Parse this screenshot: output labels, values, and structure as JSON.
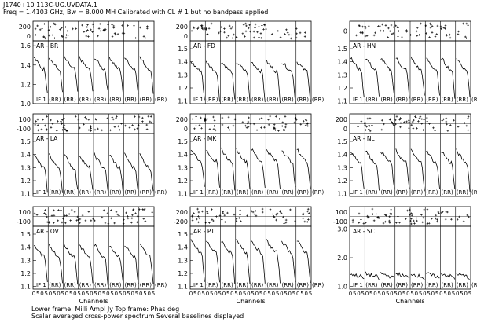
{
  "header": {
    "line1": "J1740+10   113C-UG.UVDATA.1",
    "line2": "Freq = 1.4103 GHz, Bw = 8.000 MH   Calibrated with CL # 1 but no bandpass applied"
  },
  "footer": {
    "line1": "Lower frame: Milli Ampl Jy   Top frame: Phas deg",
    "line2": "Scalar averaged cross-power spectrum     Several baselines displayed"
  },
  "colors": {
    "foreground": "#000000",
    "background": "#ffffff"
  },
  "chart_data": {
    "type": "line",
    "xlabel": "Channels",
    "xticks": [
      "0",
      "5",
      "0",
      "5",
      "0",
      "5",
      "0",
      "5",
      "0",
      "5",
      "0",
      "5",
      "0",
      "5",
      "0",
      "5",
      "0",
      "5",
      "0",
      "5",
      "0",
      "5",
      "0",
      "5",
      "0",
      "5",
      "0",
      "5",
      "0",
      "5"
    ],
    "if_row": [
      "IF 1",
      "(RR)",
      "(RR)",
      "(RR)",
      "(RR)",
      "(RR)",
      "(RR)",
      "(RR)"
    ],
    "panels": [
      {
        "baseline": "AR - BR",
        "phase_ticks": [
          "200",
          "0"
        ],
        "amp_ticks": [
          "1.6",
          "1.4",
          "1.2",
          "1.0"
        ],
        "amp_ylim": [
          1.0,
          1.65
        ],
        "amp_start": 1.48,
        "amp_end": 1.12,
        "mean_amp": 1.36,
        "xlabel": ""
      },
      {
        "baseline": "AR - FD",
        "phase_ticks": [
          "200",
          "0"
        ],
        "amp_ticks": [
          "1.5",
          "1.4",
          "1.3",
          "1.2",
          "1.1"
        ],
        "amp_ylim": [
          1.08,
          1.56
        ],
        "amp_start": 1.4,
        "amp_end": 1.1,
        "mean_amp": 1.33,
        "xlabel": ""
      },
      {
        "baseline": "AR - HN",
        "phase_ticks": [
          "0"
        ],
        "amp_ticks": [
          "1.5",
          "1.4",
          "1.3",
          "1.2",
          "1.1"
        ],
        "amp_ylim": [
          1.08,
          1.56
        ],
        "amp_start": 1.43,
        "amp_end": 1.13,
        "mean_amp": 1.34,
        "xlabel": ""
      },
      {
        "baseline": "AR - LA",
        "phase_ticks": [
          "100",
          "-100"
        ],
        "amp_ticks": [
          "1.5",
          "1.4",
          "1.3",
          "1.2",
          "1.1"
        ],
        "amp_ylim": [
          1.08,
          1.56
        ],
        "amp_start": 1.4,
        "amp_end": 1.12,
        "mean_amp": 1.3,
        "xlabel": ""
      },
      {
        "baseline": "AR - MK",
        "phase_ticks": [
          "200",
          "0"
        ],
        "amp_ticks": [
          "1.5",
          "1.4",
          "1.3",
          "1.2",
          "1.1"
        ],
        "amp_ylim": [
          1.08,
          1.56
        ],
        "amp_start": 1.44,
        "amp_end": 1.14,
        "mean_amp": 1.35,
        "xlabel": ""
      },
      {
        "baseline": "AR - NL",
        "phase_ticks": [
          "200",
          "0"
        ],
        "amp_ticks": [
          "1.5",
          "1.4",
          "1.3",
          "1.2",
          "1.1"
        ],
        "amp_ylim": [
          1.08,
          1.56
        ],
        "amp_start": 1.43,
        "amp_end": 1.13,
        "mean_amp": 1.34,
        "xlabel": ""
      },
      {
        "baseline": "AR - OV",
        "phase_ticks": [
          "100",
          "-100"
        ],
        "amp_ticks": [
          "1.5",
          "1.4",
          "1.3",
          "1.2",
          "1.1"
        ],
        "amp_ylim": [
          1.08,
          1.56
        ],
        "amp_start": 1.42,
        "amp_end": 1.12,
        "mean_amp": 1.33,
        "xlabel": "Channels"
      },
      {
        "baseline": "AR - PT",
        "phase_ticks": [
          "200",
          "-200"
        ],
        "amp_ticks": [
          "1.5",
          "1.4",
          "1.3",
          "1.2",
          "1.1"
        ],
        "amp_ylim": [
          1.08,
          1.56
        ],
        "amp_start": 1.45,
        "amp_end": 1.13,
        "mean_amp": 1.36,
        "xlabel": "Channels"
      },
      {
        "baseline": "AR - SC",
        "phase_ticks": [
          "100",
          "-100"
        ],
        "amp_ticks": [
          "3.0",
          "2.0",
          "1.0"
        ],
        "amp_ylim": [
          0.9,
          3.1
        ],
        "amp_start": 1.45,
        "amp_end": 1.25,
        "mean_amp": 1.35,
        "xlabel": "Channels"
      }
    ]
  }
}
